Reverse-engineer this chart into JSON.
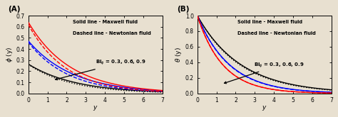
{
  "panel_A_label": "(A)",
  "panel_B_label": "(B)",
  "ylabel_A": "$\\phi$ (y)",
  "ylabel_B": "$\\theta$ (y)",
  "xlabel": "y",
  "legend_solid": "Solid line - Maxwell fluid",
  "legend_dashed": "Dashed line - Newtonian fluid",
  "bi_label": "Bi$_{\\phi}$ = 0.3, 0.6, 0.9",
  "x_max": 7,
  "ylim_A": [
    0.0,
    0.7
  ],
  "ylim_B": [
    0.0,
    1.0
  ],
  "yticks_A": [
    0.0,
    0.1,
    0.2,
    0.3,
    0.4,
    0.5,
    0.6,
    0.7
  ],
  "yticks_B": [
    0.0,
    0.2,
    0.4,
    0.6,
    0.8,
    1.0
  ],
  "xticks": [
    0,
    1,
    2,
    3,
    4,
    5,
    6,
    7
  ],
  "bi_values": [
    0.3,
    0.6,
    0.9
  ],
  "bi_colors": [
    "black",
    "blue",
    "red"
  ],
  "background": "#e8e0d0",
  "legend_fontsize": 4.8,
  "tick_labelsize": 5.5,
  "axis_labelsize": 6.5,
  "panel_label_fontsize": 7.5,
  "annot_fontsize": 5.0,
  "linewidth": 1.0
}
